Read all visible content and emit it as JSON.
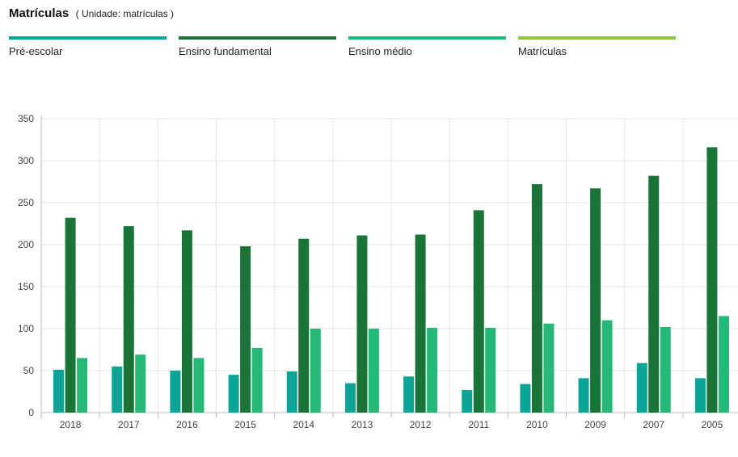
{
  "header": {
    "title": "Matrículas",
    "subtitle": "( Unidade: matrículas )"
  },
  "legend": [
    {
      "label": "Pré-escolar",
      "color": "#0aa596"
    },
    {
      "label": "Ensino fundamental",
      "color": "#1a7437"
    },
    {
      "label": "Ensino médio",
      "color": "#26b877"
    },
    {
      "label": "Matrículas",
      "color": "#8cc63f"
    }
  ],
  "chart_data": {
    "type": "bar",
    "categories": [
      "2018",
      "2017",
      "2016",
      "2015",
      "2014",
      "2013",
      "2012",
      "2011",
      "2010",
      "2009",
      "2007",
      "2005"
    ],
    "series": [
      {
        "name": "Pré-escolar",
        "color": "#0aa596",
        "values": [
          51,
          55,
          50,
          45,
          49,
          35,
          43,
          27,
          34,
          41,
          59,
          41
        ]
      },
      {
        "name": "Ensino fundamental",
        "color": "#1a7437",
        "values": [
          232,
          222,
          217,
          198,
          207,
          211,
          212,
          241,
          272,
          267,
          282,
          316
        ]
      },
      {
        "name": "Ensino médio",
        "color": "#26b877",
        "values": [
          65,
          69,
          65,
          77,
          100,
          100,
          101,
          101,
          106,
          110,
          102,
          115
        ]
      }
    ],
    "ylim": [
      0,
      350
    ],
    "yticks": [
      0,
      50,
      100,
      150,
      200,
      250,
      300,
      350
    ],
    "grid": true
  }
}
